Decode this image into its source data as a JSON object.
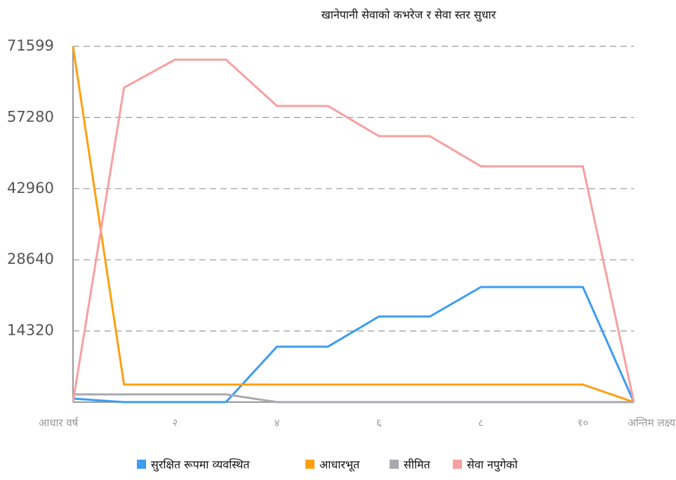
{
  "chart_data": {
    "type": "line",
    "title": "खानेपानी सेवाको कभरेज र सेवा स्तर सुधार",
    "categories": [
      "आधार वर्ष",
      null,
      "२",
      null,
      "४",
      null,
      "६",
      null,
      "८",
      null,
      "१०",
      "अन्तिम लक्ष्य"
    ],
    "series": [
      {
        "name": "सुरक्षित रूपमा व्यवस्थित",
        "color": "#3d9cf0",
        "values": [
          700,
          0,
          0,
          0,
          11160,
          11160,
          17230,
          17230,
          23160,
          23160,
          23160,
          0
        ]
      },
      {
        "name": "आधारभूत",
        "color": "#ff9f10",
        "values": [
          71599,
          3530,
          3530,
          3530,
          3530,
          3530,
          3530,
          3530,
          3530,
          3530,
          3530,
          0
        ]
      },
      {
        "name": "सीमित",
        "color": "#a9a9b0",
        "values": [
          1550,
          1550,
          1550,
          1550,
          0,
          0,
          0,
          0,
          0,
          0,
          0,
          0
        ]
      },
      {
        "name": "सेवा नपुगेको",
        "color": "#f7a0a0",
        "values": [
          0,
          63270,
          68920,
          68920,
          59600,
          59600,
          53520,
          53520,
          47450,
          47450,
          47450,
          0
        ]
      }
    ],
    "ylim": [
      0,
      71599
    ],
    "yticks": [
      14320,
      28640,
      42960,
      57280,
      71599
    ],
    "grid": true,
    "legend": "bottom"
  }
}
